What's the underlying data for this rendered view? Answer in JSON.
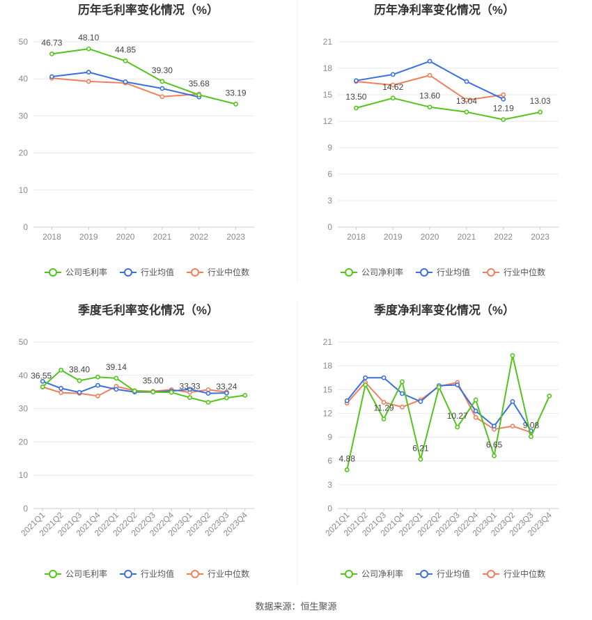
{
  "source_note": "数据来源：恒生聚源",
  "colors": {
    "company": "#52c41a",
    "industry_avg": "#3a6fe0",
    "industry_median": "#f07f5a"
  },
  "chart_data": [
    {
      "type": "line",
      "title": "历年毛利率变化情况（%）",
      "categories": [
        "2018",
        "2019",
        "2020",
        "2021",
        "2022",
        "2023"
      ],
      "ylim": [
        0,
        50
      ],
      "yticks": [
        0,
        10,
        20,
        30,
        40,
        50
      ],
      "series": [
        {
          "name": "公司毛利率",
          "key": "company",
          "values": [
            46.73,
            48.1,
            44.85,
            39.3,
            35.68,
            33.19
          ],
          "labels": true
        },
        {
          "name": "行业均值",
          "key": "industry_avg",
          "values": [
            40.6,
            41.8,
            39.2,
            37.4,
            35.1,
            null
          ]
        },
        {
          "name": "行业中位数",
          "key": "industry_median",
          "values": [
            40.2,
            39.3,
            38.9,
            35.2,
            35.9,
            null
          ]
        }
      ],
      "data_labels": [
        "46.73",
        "48.10",
        "44.85",
        "39.30",
        "35.68",
        "33.19"
      ]
    },
    {
      "type": "line",
      "title": "历年净利率变化情况（%）",
      "categories": [
        "2018",
        "2019",
        "2020",
        "2021",
        "2022",
        "2023"
      ],
      "ylim": [
        0,
        21
      ],
      "yticks": [
        0,
        3,
        6,
        9,
        12,
        15,
        18,
        21
      ],
      "series": [
        {
          "name": "公司净利率",
          "key": "company",
          "values": [
            13.5,
            14.62,
            13.6,
            13.04,
            12.19,
            13.03
          ],
          "labels": true
        },
        {
          "name": "行业均值",
          "key": "industry_avg",
          "values": [
            16.6,
            17.3,
            18.8,
            16.5,
            14.5,
            null
          ]
        },
        {
          "name": "行业中位数",
          "key": "industry_median",
          "values": [
            16.5,
            16.1,
            17.2,
            14.4,
            15.0,
            null
          ]
        }
      ],
      "data_labels": [
        "13.50",
        "14.62",
        "13.60",
        "13.04",
        "12.19",
        "13.03"
      ]
    },
    {
      "type": "line",
      "title": "季度毛利率变化情况（%）",
      "categories": [
        "2021Q1",
        "2021Q2",
        "2021Q3",
        "2021Q4",
        "2022Q1",
        "2022Q2",
        "2022Q3",
        "2022Q4",
        "2023Q1",
        "2023Q2",
        "2023Q3",
        "2023Q4"
      ],
      "ylim": [
        0,
        50
      ],
      "yticks": [
        0,
        10,
        20,
        30,
        40,
        50
      ],
      "series": [
        {
          "name": "公司毛利率",
          "key": "company",
          "values": [
            36.55,
            41.6,
            38.4,
            39.5,
            39.14,
            35.3,
            35.0,
            34.9,
            33.33,
            31.9,
            33.24,
            34.0
          ]
        },
        {
          "name": "行业均值",
          "key": "industry_avg",
          "values": [
            38.2,
            36.1,
            34.9,
            37.0,
            35.8,
            35.0,
            35.0,
            35.3,
            35.8,
            34.6,
            34.7,
            null
          ]
        },
        {
          "name": "行业中位数",
          "key": "industry_median",
          "values": [
            36.5,
            34.8,
            34.6,
            33.8,
            36.7,
            35.4,
            35.2,
            35.7,
            34.9,
            35.7,
            35.0,
            null
          ]
        }
      ],
      "data_labels": [
        "36.55",
        "",
        "38.40",
        "",
        "39.14",
        "",
        "35.00",
        "",
        "33.33",
        "",
        "33.24",
        ""
      ]
    },
    {
      "type": "line",
      "title": "季度净利率变化情况（%）",
      "categories": [
        "2021Q1",
        "2021Q2",
        "2021Q3",
        "2021Q4",
        "2022Q1",
        "2022Q2",
        "2022Q3",
        "2022Q4",
        "2023Q1",
        "2023Q2",
        "2023Q3",
        "2023Q4"
      ],
      "ylim": [
        0,
        21
      ],
      "yticks": [
        0,
        3,
        6,
        9,
        12,
        15,
        18,
        21
      ],
      "series": [
        {
          "name": "公司净利率",
          "key": "company",
          "values": [
            4.88,
            15.6,
            11.29,
            16.0,
            6.21,
            15.3,
            10.27,
            13.7,
            6.65,
            19.3,
            9.08,
            14.2
          ]
        },
        {
          "name": "行业均值",
          "key": "industry_avg",
          "values": [
            13.6,
            16.5,
            16.5,
            14.5,
            13.5,
            15.5,
            15.6,
            12.3,
            10.4,
            13.5,
            9.8,
            null
          ]
        },
        {
          "name": "行业中位数",
          "key": "industry_median",
          "values": [
            13.3,
            15.9,
            13.4,
            12.8,
            13.7,
            15.4,
            15.9,
            11.5,
            10.0,
            10.4,
            9.6,
            null
          ]
        }
      ],
      "data_labels": [
        "4.88",
        "",
        "11.29",
        "",
        "6.21",
        "",
        "10.27",
        "",
        "6.65",
        "",
        "9.08",
        ""
      ]
    }
  ],
  "legends": [
    [
      "公司毛利率",
      "行业均值",
      "行业中位数"
    ],
    [
      "公司净利率",
      "行业均值",
      "行业中位数"
    ],
    [
      "公司毛利率",
      "行业均值",
      "行业中位数"
    ],
    [
      "公司净利率",
      "行业均值",
      "行业中位数"
    ]
  ]
}
